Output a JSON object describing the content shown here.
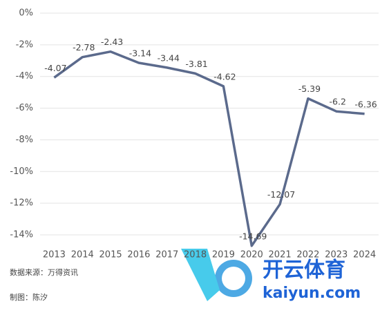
{
  "chart_data": {
    "type": "line",
    "categories": [
      "2013",
      "2014",
      "2015",
      "2016",
      "2017",
      "2018",
      "2019",
      "2020",
      "2021",
      "2022",
      "2023",
      "2024"
    ],
    "values": [
      -4.07,
      -2.78,
      -2.43,
      -3.14,
      -3.44,
      -3.81,
      -4.62,
      -14.69,
      -12.07,
      -5.39,
      -6.2,
      -6.36
    ],
    "color": "#5b6a8c",
    "ylim": [
      -14,
      0
    ],
    "yticks": [
      {
        "value": 0,
        "label": "0%"
      },
      {
        "value": -2,
        "label": "-2%"
      },
      {
        "value": -4,
        "label": "-4%"
      },
      {
        "value": -6,
        "label": "-6%"
      },
      {
        "value": -8,
        "label": "-8%"
      },
      {
        "value": -10,
        "label": "-10%"
      },
      {
        "value": -12,
        "label": "-12%"
      },
      {
        "value": -14,
        "label": "-14%"
      }
    ],
    "grid": true,
    "source": "数据来源：万得资讯",
    "author": "制图：陈汐",
    "watermark": "开云体育",
    "watermark_url": "kaiyun.com"
  }
}
